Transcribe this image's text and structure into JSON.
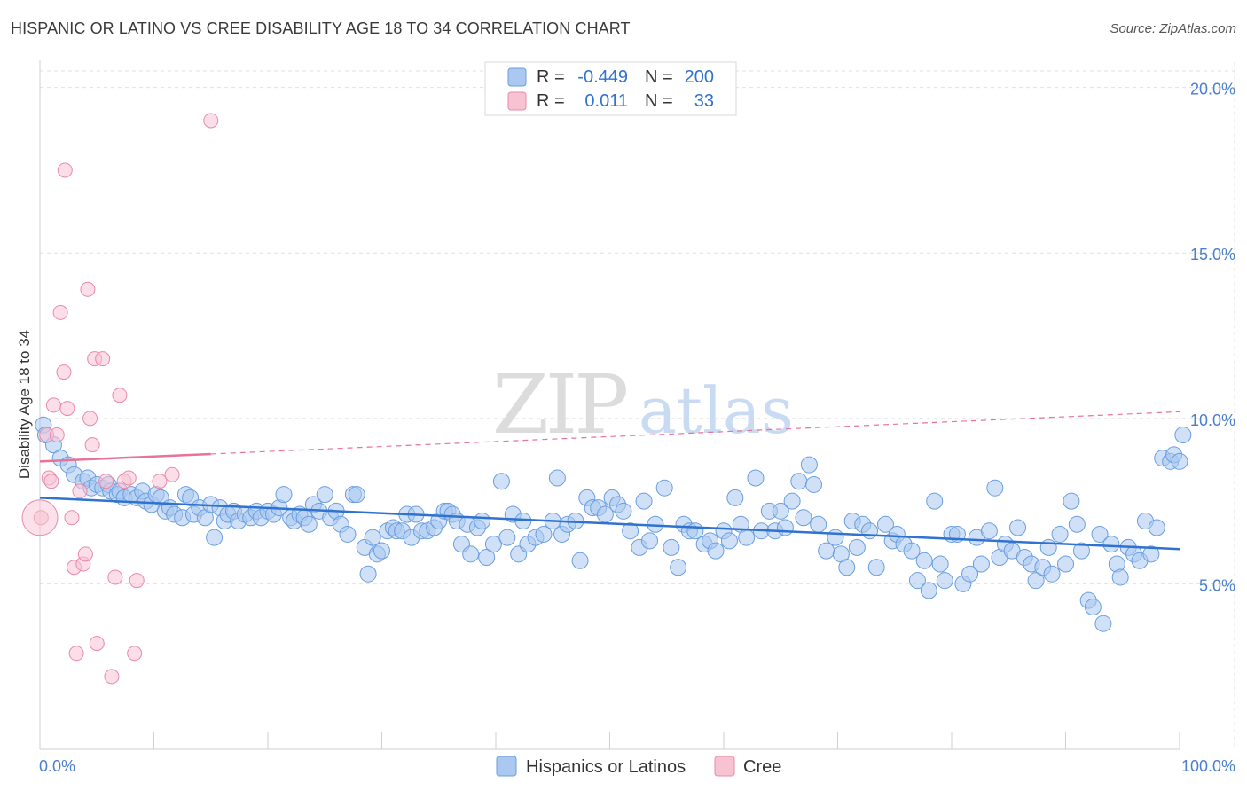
{
  "title": "HISPANIC OR LATINO VS CREE DISABILITY AGE 18 TO 34 CORRELATION CHART",
  "source": "Source: ZipAtlas.com",
  "watermark": {
    "zip": "ZIP",
    "atlas": "atlas"
  },
  "colors": {
    "blue_fill": "#aac8f0",
    "blue_stroke": "#6a9ee0",
    "blue_line": "#2f72d0",
    "pink_fill": "#f7c3d3",
    "pink_stroke": "#e88aaa",
    "pink_line": "#e8739a",
    "grid": "#e0e0e0",
    "label": "#4a7fcf"
  },
  "stats_legend": {
    "rows": [
      {
        "r_label": "R =",
        "r_value": "-0.449",
        "n_label": "N =",
        "n_value": "200"
      },
      {
        "r_label": "R =",
        "r_value": "0.011",
        "n_label": "N =",
        "n_value": "33"
      }
    ]
  },
  "chart_data": {
    "type": "scatter",
    "title": "HISPANIC OR LATINO VS CREE DISABILITY AGE 18 TO 34 CORRELATION CHART",
    "xlabel": "",
    "ylabel": "Disability Age 18 to 34",
    "xlim": [
      0,
      100
    ],
    "ylim": [
      0,
      20.5
    ],
    "x_tick_labels": [
      "0.0%",
      "100.0%"
    ],
    "y_ticks": [
      5,
      10,
      15,
      20
    ],
    "y_tick_labels": [
      "5.0%",
      "10.0%",
      "15.0%",
      "20.0%"
    ],
    "grid": true,
    "legend": [
      "Hispanics or Latinos",
      "Cree"
    ],
    "series": [
      {
        "name": "Hispanics or Latinos",
        "r": -0.449,
        "n": 200,
        "trend": {
          "x": [
            0,
            100
          ],
          "y": [
            7.6,
            6.05
          ]
        },
        "points": [
          [
            0.3,
            9.8
          ],
          [
            0.5,
            9.5
          ],
          [
            1.2,
            9.2
          ],
          [
            1.8,
            8.8
          ],
          [
            2.5,
            8.6
          ],
          [
            3,
            8.3
          ],
          [
            3.8,
            8.1
          ],
          [
            4.2,
            8.2
          ],
          [
            4.5,
            7.9
          ],
          [
            5,
            8
          ],
          [
            5.5,
            7.9
          ],
          [
            6,
            8
          ],
          [
            6.2,
            7.8
          ],
          [
            6.8,
            7.7
          ],
          [
            7,
            7.8
          ],
          [
            7.4,
            7.6
          ],
          [
            8,
            7.7
          ],
          [
            8.5,
            7.6
          ],
          [
            9,
            7.8
          ],
          [
            9.3,
            7.5
          ],
          [
            9.8,
            7.4
          ],
          [
            10.2,
            7.7
          ],
          [
            10.6,
            7.6
          ],
          [
            11,
            7.2
          ],
          [
            11.4,
            7.3
          ],
          [
            11.8,
            7.1
          ],
          [
            12.5,
            7
          ],
          [
            12.8,
            7.7
          ],
          [
            13.2,
            7.6
          ],
          [
            13.5,
            7.1
          ],
          [
            14,
            7.3
          ],
          [
            14.5,
            7
          ],
          [
            15,
            7.4
          ],
          [
            15.3,
            6.4
          ],
          [
            15.8,
            7.3
          ],
          [
            16.2,
            6.9
          ],
          [
            16.5,
            7.1
          ],
          [
            17,
            7.2
          ],
          [
            17.4,
            6.9
          ],
          [
            18,
            7.1
          ],
          [
            18.5,
            7
          ],
          [
            19,
            7.2
          ],
          [
            19.4,
            7
          ],
          [
            20,
            7.2
          ],
          [
            20.5,
            7.1
          ],
          [
            21,
            7.3
          ],
          [
            21.4,
            7.7
          ],
          [
            22,
            7
          ],
          [
            22.3,
            6.9
          ],
          [
            22.8,
            7.1
          ],
          [
            23.2,
            7
          ],
          [
            23.6,
            6.8
          ],
          [
            24,
            7.4
          ],
          [
            24.5,
            7.2
          ],
          [
            25,
            7.7
          ],
          [
            25.5,
            7
          ],
          [
            26,
            7.2
          ],
          [
            26.4,
            6.8
          ],
          [
            27,
            6.5
          ],
          [
            27.5,
            7.7
          ],
          [
            27.8,
            7.7
          ],
          [
            28.5,
            6.1
          ],
          [
            28.8,
            5.3
          ],
          [
            29.2,
            6.4
          ],
          [
            29.6,
            5.9
          ],
          [
            30,
            6
          ],
          [
            30.5,
            6.6
          ],
          [
            31,
            6.7
          ],
          [
            31.3,
            6.6
          ],
          [
            31.8,
            6.6
          ],
          [
            32.2,
            7.1
          ],
          [
            32.6,
            6.4
          ],
          [
            33,
            7.1
          ],
          [
            33.5,
            6.6
          ],
          [
            34,
            6.6
          ],
          [
            34.6,
            6.7
          ],
          [
            35,
            6.9
          ],
          [
            35.5,
            7.2
          ],
          [
            35.8,
            7.2
          ],
          [
            36.2,
            7.1
          ],
          [
            36.6,
            6.9
          ],
          [
            37,
            6.2
          ],
          [
            37.5,
            6.8
          ],
          [
            37.8,
            5.9
          ],
          [
            38.4,
            6.7
          ],
          [
            38.8,
            6.9
          ],
          [
            39.2,
            5.8
          ],
          [
            39.8,
            6.2
          ],
          [
            40.5,
            8.1
          ],
          [
            41,
            6.4
          ],
          [
            41.5,
            7.1
          ],
          [
            42,
            5.9
          ],
          [
            42.4,
            6.9
          ],
          [
            42.8,
            6.2
          ],
          [
            43.5,
            6.4
          ],
          [
            44.2,
            6.5
          ],
          [
            45,
            6.9
          ],
          [
            45.4,
            8.2
          ],
          [
            45.8,
            6.5
          ],
          [
            46.3,
            6.8
          ],
          [
            47,
            6.9
          ],
          [
            47.4,
            5.7
          ],
          [
            48,
            7.6
          ],
          [
            48.5,
            7.3
          ],
          [
            49,
            7.3
          ],
          [
            49.6,
            7.1
          ],
          [
            50.2,
            7.6
          ],
          [
            50.7,
            7.4
          ],
          [
            51.2,
            7.2
          ],
          [
            51.8,
            6.6
          ],
          [
            52.6,
            6.1
          ],
          [
            53,
            7.5
          ],
          [
            53.5,
            6.3
          ],
          [
            54,
            6.8
          ],
          [
            54.8,
            7.9
          ],
          [
            55.4,
            6.1
          ],
          [
            56,
            5.5
          ],
          [
            56.5,
            6.8
          ],
          [
            57,
            6.6
          ],
          [
            57.5,
            6.6
          ],
          [
            58.3,
            6.2
          ],
          [
            58.8,
            6.3
          ],
          [
            59.3,
            6
          ],
          [
            60,
            6.6
          ],
          [
            60.5,
            6.3
          ],
          [
            61,
            7.6
          ],
          [
            61.5,
            6.8
          ],
          [
            62,
            6.4
          ],
          [
            62.8,
            8.2
          ],
          [
            63.3,
            6.6
          ],
          [
            64,
            7.2
          ],
          [
            64.5,
            6.6
          ],
          [
            65,
            7.2
          ],
          [
            65.4,
            6.7
          ],
          [
            66,
            7.5
          ],
          [
            66.6,
            8.1
          ],
          [
            67,
            7
          ],
          [
            67.5,
            8.6
          ],
          [
            67.9,
            8
          ],
          [
            68.3,
            6.8
          ],
          [
            69,
            6
          ],
          [
            69.8,
            6.4
          ],
          [
            70.3,
            5.9
          ],
          [
            70.8,
            5.5
          ],
          [
            71.3,
            6.9
          ],
          [
            71.7,
            6.1
          ],
          [
            72.2,
            6.8
          ],
          [
            72.8,
            6.6
          ],
          [
            73.4,
            5.5
          ],
          [
            74.2,
            6.8
          ],
          [
            74.8,
            6.3
          ],
          [
            75.2,
            6.5
          ],
          [
            75.8,
            6.2
          ],
          [
            76.5,
            6
          ],
          [
            77,
            5.1
          ],
          [
            77.6,
            5.7
          ],
          [
            78,
            4.8
          ],
          [
            78.5,
            7.5
          ],
          [
            79,
            5.6
          ],
          [
            79.4,
            5.1
          ],
          [
            80,
            6.5
          ],
          [
            80.5,
            6.5
          ],
          [
            81,
            5
          ],
          [
            81.6,
            5.3
          ],
          [
            82.2,
            6.4
          ],
          [
            82.6,
            5.6
          ],
          [
            83.3,
            6.6
          ],
          [
            83.8,
            7.9
          ],
          [
            84.2,
            5.8
          ],
          [
            84.7,
            6.2
          ],
          [
            85.3,
            6
          ],
          [
            85.8,
            6.7
          ],
          [
            86.4,
            5.8
          ],
          [
            87,
            5.6
          ],
          [
            87.4,
            5.1
          ],
          [
            88,
            5.5
          ],
          [
            88.5,
            6.1
          ],
          [
            88.8,
            5.3
          ],
          [
            89.5,
            6.5
          ],
          [
            90,
            5.6
          ],
          [
            90.5,
            7.5
          ],
          [
            91,
            6.8
          ],
          [
            91.4,
            6
          ],
          [
            92,
            4.5
          ],
          [
            92.4,
            4.3
          ],
          [
            93,
            6.5
          ],
          [
            93.3,
            3.8
          ],
          [
            94,
            6.2
          ],
          [
            94.5,
            5.6
          ],
          [
            94.8,
            5.2
          ],
          [
            95.5,
            6.1
          ],
          [
            96,
            5.9
          ],
          [
            96.5,
            5.7
          ],
          [
            97,
            6.9
          ],
          [
            97.5,
            5.9
          ],
          [
            98,
            6.7
          ],
          [
            98.5,
            8.8
          ],
          [
            99.2,
            8.7
          ],
          [
            99.5,
            8.9
          ],
          [
            100,
            8.7
          ],
          [
            100.3,
            9.5
          ]
        ]
      },
      {
        "name": "Cree",
        "r": 0.011,
        "n": 33,
        "trend": {
          "x": [
            0,
            100
          ],
          "y": [
            8.7,
            10.2
          ]
        },
        "trend_solid_until_x": 15,
        "points": [
          [
            0.1,
            7
          ],
          [
            0.6,
            9.5
          ],
          [
            0.8,
            8.2
          ],
          [
            1,
            8.1
          ],
          [
            1.2,
            10.4
          ],
          [
            1.5,
            9.5
          ],
          [
            1.8,
            13.2
          ],
          [
            2.1,
            11.4
          ],
          [
            2.4,
            10.3
          ],
          [
            2.8,
            7
          ],
          [
            3,
            5.5
          ],
          [
            3.2,
            2.9
          ],
          [
            3.5,
            7.8
          ],
          [
            3.8,
            5.6
          ],
          [
            4,
            5.9
          ],
          [
            4.2,
            13.9
          ],
          [
            4.4,
            10
          ],
          [
            4.6,
            9.2
          ],
          [
            4.8,
            11.8
          ],
          [
            5,
            3.2
          ],
          [
            5.5,
            11.8
          ],
          [
            5.8,
            8.1
          ],
          [
            6.3,
            2.2
          ],
          [
            6.6,
            5.2
          ],
          [
            7,
            10.7
          ],
          [
            7.4,
            8.1
          ],
          [
            7.8,
            8.2
          ],
          [
            8.3,
            2.9
          ],
          [
            8.5,
            5.1
          ],
          [
            10.5,
            8.1
          ],
          [
            11.6,
            8.3
          ],
          [
            15,
            19
          ],
          [
            2.2,
            17.5
          ]
        ]
      }
    ]
  }
}
